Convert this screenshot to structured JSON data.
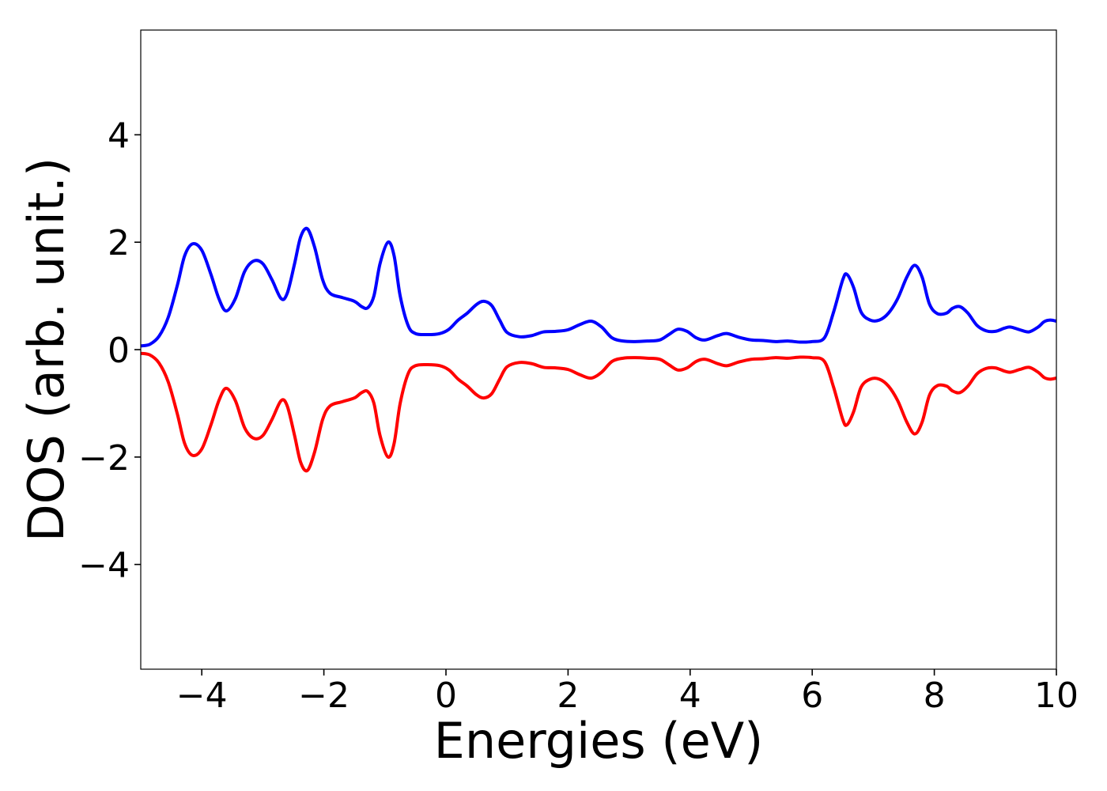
{
  "chart_data": {
    "type": "line",
    "title": "",
    "xlabel": "Energies (eV)",
    "ylabel": "DOS (arb. unit.)",
    "xlim": [
      -5,
      10
    ],
    "ylim": [
      -5.95,
      5.95
    ],
    "xticks": [
      -4,
      -2,
      0,
      2,
      4,
      6,
      8,
      10
    ],
    "yticks": [
      -4,
      -2,
      0,
      2,
      4
    ],
    "xtick_labels": [
      "−4",
      "−2",
      "0",
      "2",
      "4",
      "6",
      "8",
      "10"
    ],
    "ytick_labels": [
      "−4",
      "−2",
      "0",
      "2",
      "4"
    ],
    "grid": false,
    "legend": "none",
    "series": [
      {
        "color": "#0000ff",
        "points": [
          [
            -5.0,
            0.07
          ],
          [
            -4.85,
            0.1
          ],
          [
            -4.7,
            0.25
          ],
          [
            -4.55,
            0.6
          ],
          [
            -4.4,
            1.2
          ],
          [
            -4.28,
            1.75
          ],
          [
            -4.15,
            1.97
          ],
          [
            -4.0,
            1.85
          ],
          [
            -3.85,
            1.4
          ],
          [
            -3.72,
            0.95
          ],
          [
            -3.6,
            0.72
          ],
          [
            -3.45,
            0.95
          ],
          [
            -3.3,
            1.45
          ],
          [
            -3.15,
            1.65
          ],
          [
            -3.0,
            1.6
          ],
          [
            -2.85,
            1.3
          ],
          [
            -2.7,
            0.95
          ],
          [
            -2.6,
            1.05
          ],
          [
            -2.48,
            1.6
          ],
          [
            -2.38,
            2.1
          ],
          [
            -2.27,
            2.25
          ],
          [
            -2.15,
            1.9
          ],
          [
            -2.02,
            1.3
          ],
          [
            -1.9,
            1.05
          ],
          [
            -1.7,
            0.97
          ],
          [
            -1.5,
            0.9
          ],
          [
            -1.38,
            0.8
          ],
          [
            -1.28,
            0.78
          ],
          [
            -1.18,
            1.0
          ],
          [
            -1.08,
            1.6
          ],
          [
            -0.95,
            2.0
          ],
          [
            -0.85,
            1.75
          ],
          [
            -0.75,
            1.0
          ],
          [
            -0.62,
            0.45
          ],
          [
            -0.5,
            0.3
          ],
          [
            -0.3,
            0.28
          ],
          [
            -0.1,
            0.3
          ],
          [
            0.05,
            0.38
          ],
          [
            0.2,
            0.55
          ],
          [
            0.35,
            0.68
          ],
          [
            0.5,
            0.84
          ],
          [
            0.62,
            0.9
          ],
          [
            0.75,
            0.82
          ],
          [
            0.88,
            0.55
          ],
          [
            1.0,
            0.32
          ],
          [
            1.2,
            0.24
          ],
          [
            1.4,
            0.26
          ],
          [
            1.6,
            0.33
          ],
          [
            1.8,
            0.34
          ],
          [
            2.0,
            0.37
          ],
          [
            2.2,
            0.47
          ],
          [
            2.38,
            0.53
          ],
          [
            2.55,
            0.42
          ],
          [
            2.72,
            0.22
          ],
          [
            2.9,
            0.16
          ],
          [
            3.1,
            0.15
          ],
          [
            3.3,
            0.16
          ],
          [
            3.5,
            0.18
          ],
          [
            3.65,
            0.28
          ],
          [
            3.8,
            0.38
          ],
          [
            3.95,
            0.34
          ],
          [
            4.1,
            0.22
          ],
          [
            4.25,
            0.18
          ],
          [
            4.45,
            0.26
          ],
          [
            4.6,
            0.3
          ],
          [
            4.8,
            0.23
          ],
          [
            5.0,
            0.18
          ],
          [
            5.2,
            0.17
          ],
          [
            5.4,
            0.15
          ],
          [
            5.6,
            0.16
          ],
          [
            5.8,
            0.14
          ],
          [
            6.0,
            0.15
          ],
          [
            6.2,
            0.22
          ],
          [
            6.35,
            0.7
          ],
          [
            6.5,
            1.3
          ],
          [
            6.57,
            1.4
          ],
          [
            6.68,
            1.15
          ],
          [
            6.8,
            0.7
          ],
          [
            6.95,
            0.55
          ],
          [
            7.1,
            0.55
          ],
          [
            7.25,
            0.68
          ],
          [
            7.4,
            0.95
          ],
          [
            7.55,
            1.35
          ],
          [
            7.68,
            1.57
          ],
          [
            7.8,
            1.35
          ],
          [
            7.92,
            0.85
          ],
          [
            8.05,
            0.67
          ],
          [
            8.2,
            0.68
          ],
          [
            8.3,
            0.77
          ],
          [
            8.42,
            0.8
          ],
          [
            8.55,
            0.68
          ],
          [
            8.7,
            0.45
          ],
          [
            8.85,
            0.35
          ],
          [
            9.0,
            0.34
          ],
          [
            9.15,
            0.4
          ],
          [
            9.25,
            0.42
          ],
          [
            9.4,
            0.37
          ],
          [
            9.55,
            0.33
          ],
          [
            9.7,
            0.42
          ],
          [
            9.8,
            0.52
          ],
          [
            9.9,
            0.55
          ],
          [
            10.0,
            0.53
          ]
        ]
      },
      {
        "color": "#ff0000",
        "points": [
          [
            -5.0,
            -0.07
          ],
          [
            -4.85,
            -0.1
          ],
          [
            -4.7,
            -0.25
          ],
          [
            -4.55,
            -0.6
          ],
          [
            -4.4,
            -1.2
          ],
          [
            -4.28,
            -1.75
          ],
          [
            -4.15,
            -1.97
          ],
          [
            -4.0,
            -1.85
          ],
          [
            -3.85,
            -1.4
          ],
          [
            -3.72,
            -0.95
          ],
          [
            -3.6,
            -0.72
          ],
          [
            -3.45,
            -0.95
          ],
          [
            -3.3,
            -1.45
          ],
          [
            -3.15,
            -1.65
          ],
          [
            -3.0,
            -1.6
          ],
          [
            -2.85,
            -1.3
          ],
          [
            -2.7,
            -0.95
          ],
          [
            -2.6,
            -1.05
          ],
          [
            -2.48,
            -1.6
          ],
          [
            -2.38,
            -2.1
          ],
          [
            -2.27,
            -2.25
          ],
          [
            -2.15,
            -1.9
          ],
          [
            -2.02,
            -1.3
          ],
          [
            -1.9,
            -1.05
          ],
          [
            -1.7,
            -0.97
          ],
          [
            -1.5,
            -0.9
          ],
          [
            -1.38,
            -0.8
          ],
          [
            -1.28,
            -0.78
          ],
          [
            -1.18,
            -1.0
          ],
          [
            -1.08,
            -1.6
          ],
          [
            -0.95,
            -2.0
          ],
          [
            -0.85,
            -1.75
          ],
          [
            -0.75,
            -1.0
          ],
          [
            -0.62,
            -0.45
          ],
          [
            -0.5,
            -0.3
          ],
          [
            -0.3,
            -0.28
          ],
          [
            -0.1,
            -0.3
          ],
          [
            0.05,
            -0.38
          ],
          [
            0.2,
            -0.55
          ],
          [
            0.35,
            -0.68
          ],
          [
            0.5,
            -0.84
          ],
          [
            0.62,
            -0.9
          ],
          [
            0.75,
            -0.82
          ],
          [
            0.88,
            -0.55
          ],
          [
            1.0,
            -0.32
          ],
          [
            1.2,
            -0.24
          ],
          [
            1.4,
            -0.26
          ],
          [
            1.6,
            -0.33
          ],
          [
            1.8,
            -0.34
          ],
          [
            2.0,
            -0.37
          ],
          [
            2.2,
            -0.47
          ],
          [
            2.38,
            -0.53
          ],
          [
            2.55,
            -0.42
          ],
          [
            2.72,
            -0.22
          ],
          [
            2.9,
            -0.16
          ],
          [
            3.1,
            -0.15
          ],
          [
            3.3,
            -0.16
          ],
          [
            3.5,
            -0.18
          ],
          [
            3.65,
            -0.28
          ],
          [
            3.8,
            -0.38
          ],
          [
            3.95,
            -0.34
          ],
          [
            4.1,
            -0.22
          ],
          [
            4.25,
            -0.18
          ],
          [
            4.45,
            -0.26
          ],
          [
            4.6,
            -0.3
          ],
          [
            4.8,
            -0.23
          ],
          [
            5.0,
            -0.18
          ],
          [
            5.2,
            -0.17
          ],
          [
            5.4,
            -0.15
          ],
          [
            5.6,
            -0.16
          ],
          [
            5.8,
            -0.14
          ],
          [
            6.0,
            -0.15
          ],
          [
            6.2,
            -0.22
          ],
          [
            6.35,
            -0.7
          ],
          [
            6.5,
            -1.3
          ],
          [
            6.57,
            -1.4
          ],
          [
            6.68,
            -1.15
          ],
          [
            6.8,
            -0.7
          ],
          [
            6.95,
            -0.55
          ],
          [
            7.1,
            -0.55
          ],
          [
            7.25,
            -0.68
          ],
          [
            7.4,
            -0.95
          ],
          [
            7.55,
            -1.35
          ],
          [
            7.68,
            -1.57
          ],
          [
            7.8,
            -1.35
          ],
          [
            7.92,
            -0.85
          ],
          [
            8.05,
            -0.67
          ],
          [
            8.2,
            -0.68
          ],
          [
            8.3,
            -0.77
          ],
          [
            8.42,
            -0.8
          ],
          [
            8.55,
            -0.68
          ],
          [
            8.7,
            -0.45
          ],
          [
            8.85,
            -0.35
          ],
          [
            9.0,
            -0.34
          ],
          [
            9.15,
            -0.4
          ],
          [
            9.25,
            -0.42
          ],
          [
            9.4,
            -0.37
          ],
          [
            9.55,
            -0.33
          ],
          [
            9.7,
            -0.42
          ],
          [
            9.8,
            -0.52
          ],
          [
            9.9,
            -0.55
          ],
          [
            10.0,
            -0.53
          ]
        ]
      }
    ]
  }
}
